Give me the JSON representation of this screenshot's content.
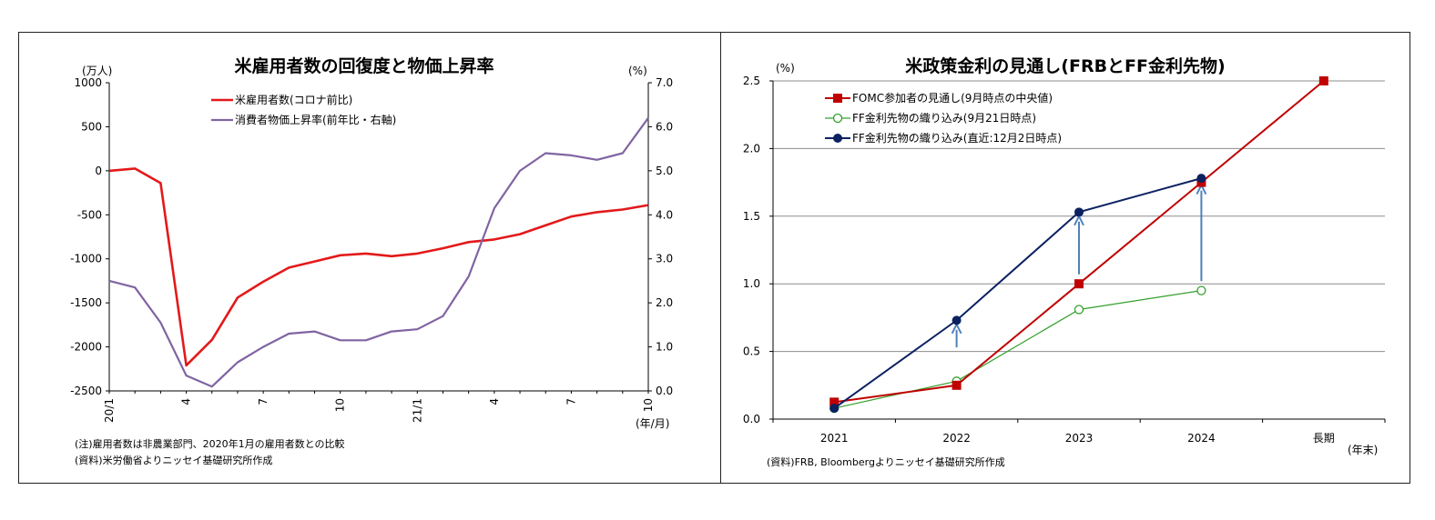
{
  "charts": [
    {
      "title": "米雇用者数の回復度と物価上昇率",
      "left_unit": "(万人)",
      "right_unit": "(%)",
      "x_unit": "(年/月)",
      "notes": [
        "(注)雇用者数は非農業部門、2020年1月の雇用者数との比較",
        "(資料)米労働省よりニッセイ基礎研究所作成"
      ]
    },
    {
      "title": "米政策金利の見通し(FRBとFF金利先物)",
      "y_unit": "(%)",
      "x_unit": "(年末)",
      "notes": [
        "(資料)FRB, Bloombergよりニッセイ基礎研究所作成"
      ]
    }
  ],
  "chart_data": [
    {
      "type": "line",
      "title": "米雇用者数の回復度と物価上昇率",
      "x_tick_labels": [
        {
          "index": 0,
          "label": "20/1"
        },
        {
          "index": 3,
          "label": "4"
        },
        {
          "index": 6,
          "label": "7"
        },
        {
          "index": 9,
          "label": "10"
        },
        {
          "index": 12,
          "label": "21/1"
        },
        {
          "index": 15,
          "label": "4"
        },
        {
          "index": 18,
          "label": "7"
        },
        {
          "index": 21,
          "label": "10"
        }
      ],
      "x": [
        "2020/1",
        "2020/2",
        "2020/3",
        "2020/4",
        "2020/5",
        "2020/6",
        "2020/7",
        "2020/8",
        "2020/9",
        "2020/10",
        "2020/11",
        "2020/12",
        "2021/1",
        "2021/2",
        "2021/3",
        "2021/4",
        "2021/5",
        "2021/6",
        "2021/7",
        "2021/8",
        "2021/9",
        "2021/10"
      ],
      "y_left": {
        "label": "(万人)",
        "range": [
          -2500,
          1000
        ],
        "ticks": [
          1000,
          500,
          0,
          -500,
          -1000,
          -1500,
          -2000,
          -2500
        ]
      },
      "y_right": {
        "label": "(%)",
        "range": [
          0,
          7
        ],
        "ticks": [
          "7.0",
          "6.0",
          "5.0",
          "4.0",
          "3.0",
          "2.0",
          "1.0",
          "0.0"
        ]
      },
      "series": [
        {
          "name": "米雇用者数(コロナ前比)",
          "axis": "left",
          "color": "#e3191a",
          "values": [
            0,
            25,
            -140,
            -2210,
            -1920,
            -1440,
            -1260,
            -1100,
            -1030,
            -960,
            -940,
            -970,
            -940,
            -880,
            -810,
            -780,
            -720,
            -620,
            -520,
            -470,
            -440,
            -390
          ]
        },
        {
          "name": "消費者物価上昇率(前年比・右軸)",
          "axis": "right",
          "color": "#8064a2",
          "values": [
            2.5,
            2.35,
            1.55,
            0.35,
            0.1,
            0.65,
            1.0,
            1.3,
            1.35,
            1.15,
            1.15,
            1.35,
            1.4,
            1.7,
            2.6,
            4.15,
            5.0,
            5.4,
            5.35,
            5.25,
            5.4,
            6.2
          ]
        }
      ],
      "legend": "top-left"
    },
    {
      "type": "line",
      "title": "米政策金利の見通し(FRBとFF金利先物)",
      "categories": [
        "2021",
        "2022",
        "2023",
        "2024",
        "長期"
      ],
      "y": {
        "label": "(%)",
        "range": [
          0,
          2.5
        ],
        "ticks": [
          "2.5",
          "2.0",
          "1.5",
          "1.0",
          "0.5",
          "0.0"
        ]
      },
      "series": [
        {
          "name": "FOMC参加者の見通し(9月時点の中央値)",
          "color": "#c00000",
          "marker": "square",
          "values": [
            0.125,
            0.25,
            1.0,
            1.75,
            2.5
          ]
        },
        {
          "name": "FF金利先物の織り込み(9月21日時点)",
          "color": "#33a02c",
          "marker": "open-circle",
          "values": [
            0.08,
            0.28,
            0.81,
            0.95,
            null
          ]
        },
        {
          "name": "FF金利先物の織り込み(直近:12月2日時点)",
          "color": "#0b2161",
          "marker": "circle",
          "values": [
            0.08,
            0.73,
            1.53,
            1.78,
            null
          ]
        }
      ],
      "arrows": [
        {
          "category": "2022",
          "from": 0.53,
          "to": 0.7
        },
        {
          "category": "2023",
          "from": 1.07,
          "to": 1.5
        },
        {
          "category": "2024",
          "from": 1.02,
          "to": 1.73
        }
      ],
      "legend": "top-left",
      "grid": true
    }
  ]
}
